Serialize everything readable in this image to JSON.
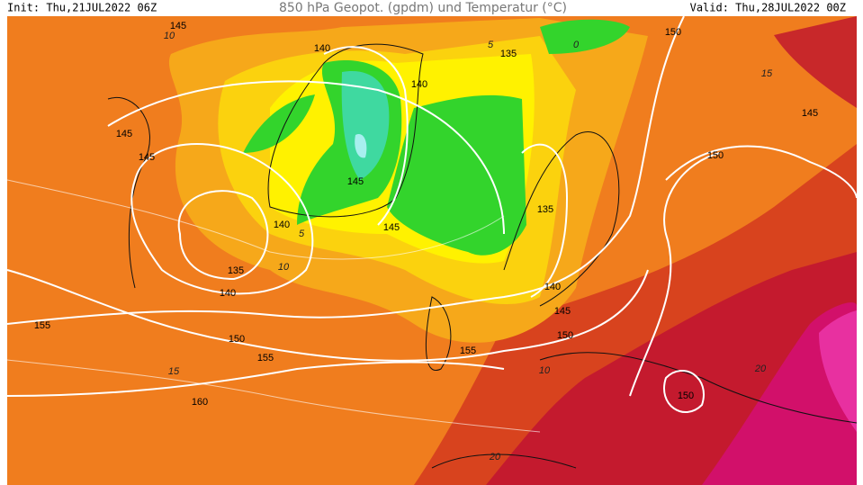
{
  "header": {
    "init": "Init: Thu,21JUL2022 06Z",
    "title": "850 hPa Geopot. (gpdm) und Temperatur (°C)",
    "valid": "Valid: Thu,28JUL2022 00Z"
  },
  "geopotential_labels": [
    "145",
    "140",
    "135",
    "150",
    "140",
    "145",
    "145",
    "145",
    "150",
    "145",
    "135",
    "140",
    "145",
    "135",
    "140",
    "140",
    "145",
    "155",
    "150",
    "150",
    "155",
    "155",
    "150",
    "160"
  ],
  "temperature_labels": [
    "10",
    "5",
    "0",
    "15",
    "5",
    "10",
    "15",
    "10",
    "20",
    "20"
  ]
}
